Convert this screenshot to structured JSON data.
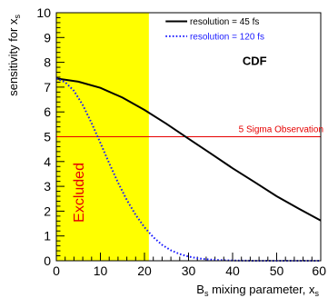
{
  "chart_data": {
    "type": "line",
    "xlim": [
      0,
      60
    ],
    "ylim": [
      0,
      10
    ],
    "x_ticks": [
      "0",
      "10",
      "20",
      "30",
      "40",
      "50",
      "60"
    ],
    "y_ticks": [
      "0",
      "1",
      "2",
      "3",
      "4",
      "5",
      "6",
      "7",
      "8",
      "9",
      "10"
    ],
    "xlabel": "B_s mixing parameter, x_s",
    "ylabel": "sensitivity for x_s",
    "title_label": "CDF",
    "series": [
      {
        "name": "resolution =  45 fs",
        "color": "#000000",
        "style": "solid",
        "x": [
          0,
          5,
          10,
          15,
          20,
          25,
          30,
          35,
          40,
          45,
          50,
          55,
          60
        ],
        "y": [
          7.35,
          7.22,
          6.97,
          6.58,
          6.08,
          5.52,
          4.92,
          4.33,
          3.73,
          3.17,
          2.6,
          2.1,
          1.62
        ]
      },
      {
        "name": "resolution = 120 fs",
        "color": "#1a1aff",
        "style": "dotted",
        "x": [
          0,
          2,
          4,
          6,
          8,
          10,
          12,
          14,
          16,
          18,
          20,
          22,
          24,
          26,
          28,
          30,
          32,
          34,
          36,
          38,
          40,
          45,
          50,
          55,
          60
        ],
        "y": [
          7.35,
          7.2,
          6.85,
          6.28,
          5.55,
          4.75,
          3.93,
          3.15,
          2.45,
          1.85,
          1.35,
          0.95,
          0.64,
          0.42,
          0.27,
          0.17,
          0.1,
          0.06,
          0.035,
          0.02,
          0.01,
          0.0,
          0.0,
          0.0,
          0.0
        ]
      }
    ],
    "threshold": {
      "y": 5,
      "label": "5 Sigma Observation",
      "color": "#e60000"
    },
    "excluded_region": {
      "x_range": [
        0,
        21
      ],
      "label": "Excluded",
      "fill": "#ffff00",
      "text_color": "#e60000"
    }
  }
}
